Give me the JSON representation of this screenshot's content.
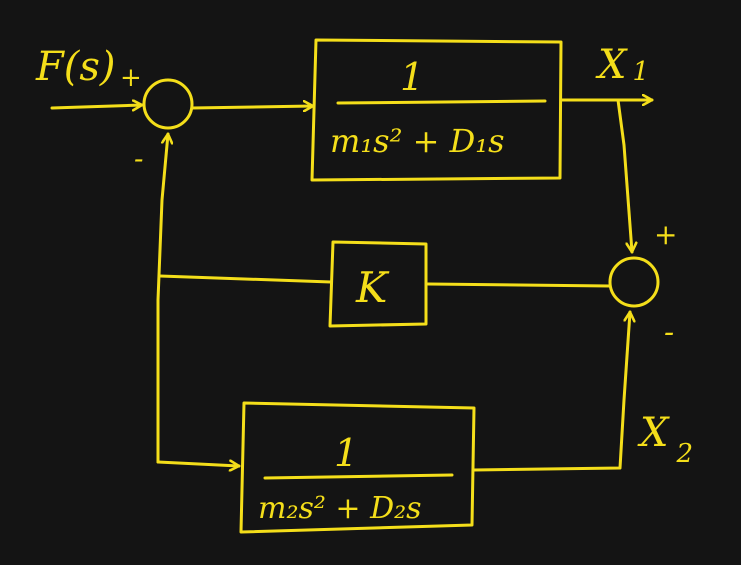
{
  "diagram": {
    "ink_color": "#f4de1a",
    "background": "#141414",
    "input": {
      "label": "F(s)"
    },
    "outputs": {
      "x1": "X",
      "x1_sub": "1",
      "x2": "X",
      "x2_sub": "2"
    },
    "sum1": {
      "plus": "+",
      "minus": "-"
    },
    "sum2": {
      "plus": "+",
      "minus": "-"
    },
    "blocks": {
      "g1": {
        "numerator": "1",
        "denominator": "m₁s² + D₁s"
      },
      "k": {
        "label": "K"
      },
      "g2": {
        "numerator": "1",
        "denominator": "m₂s² + D₂s"
      }
    }
  }
}
